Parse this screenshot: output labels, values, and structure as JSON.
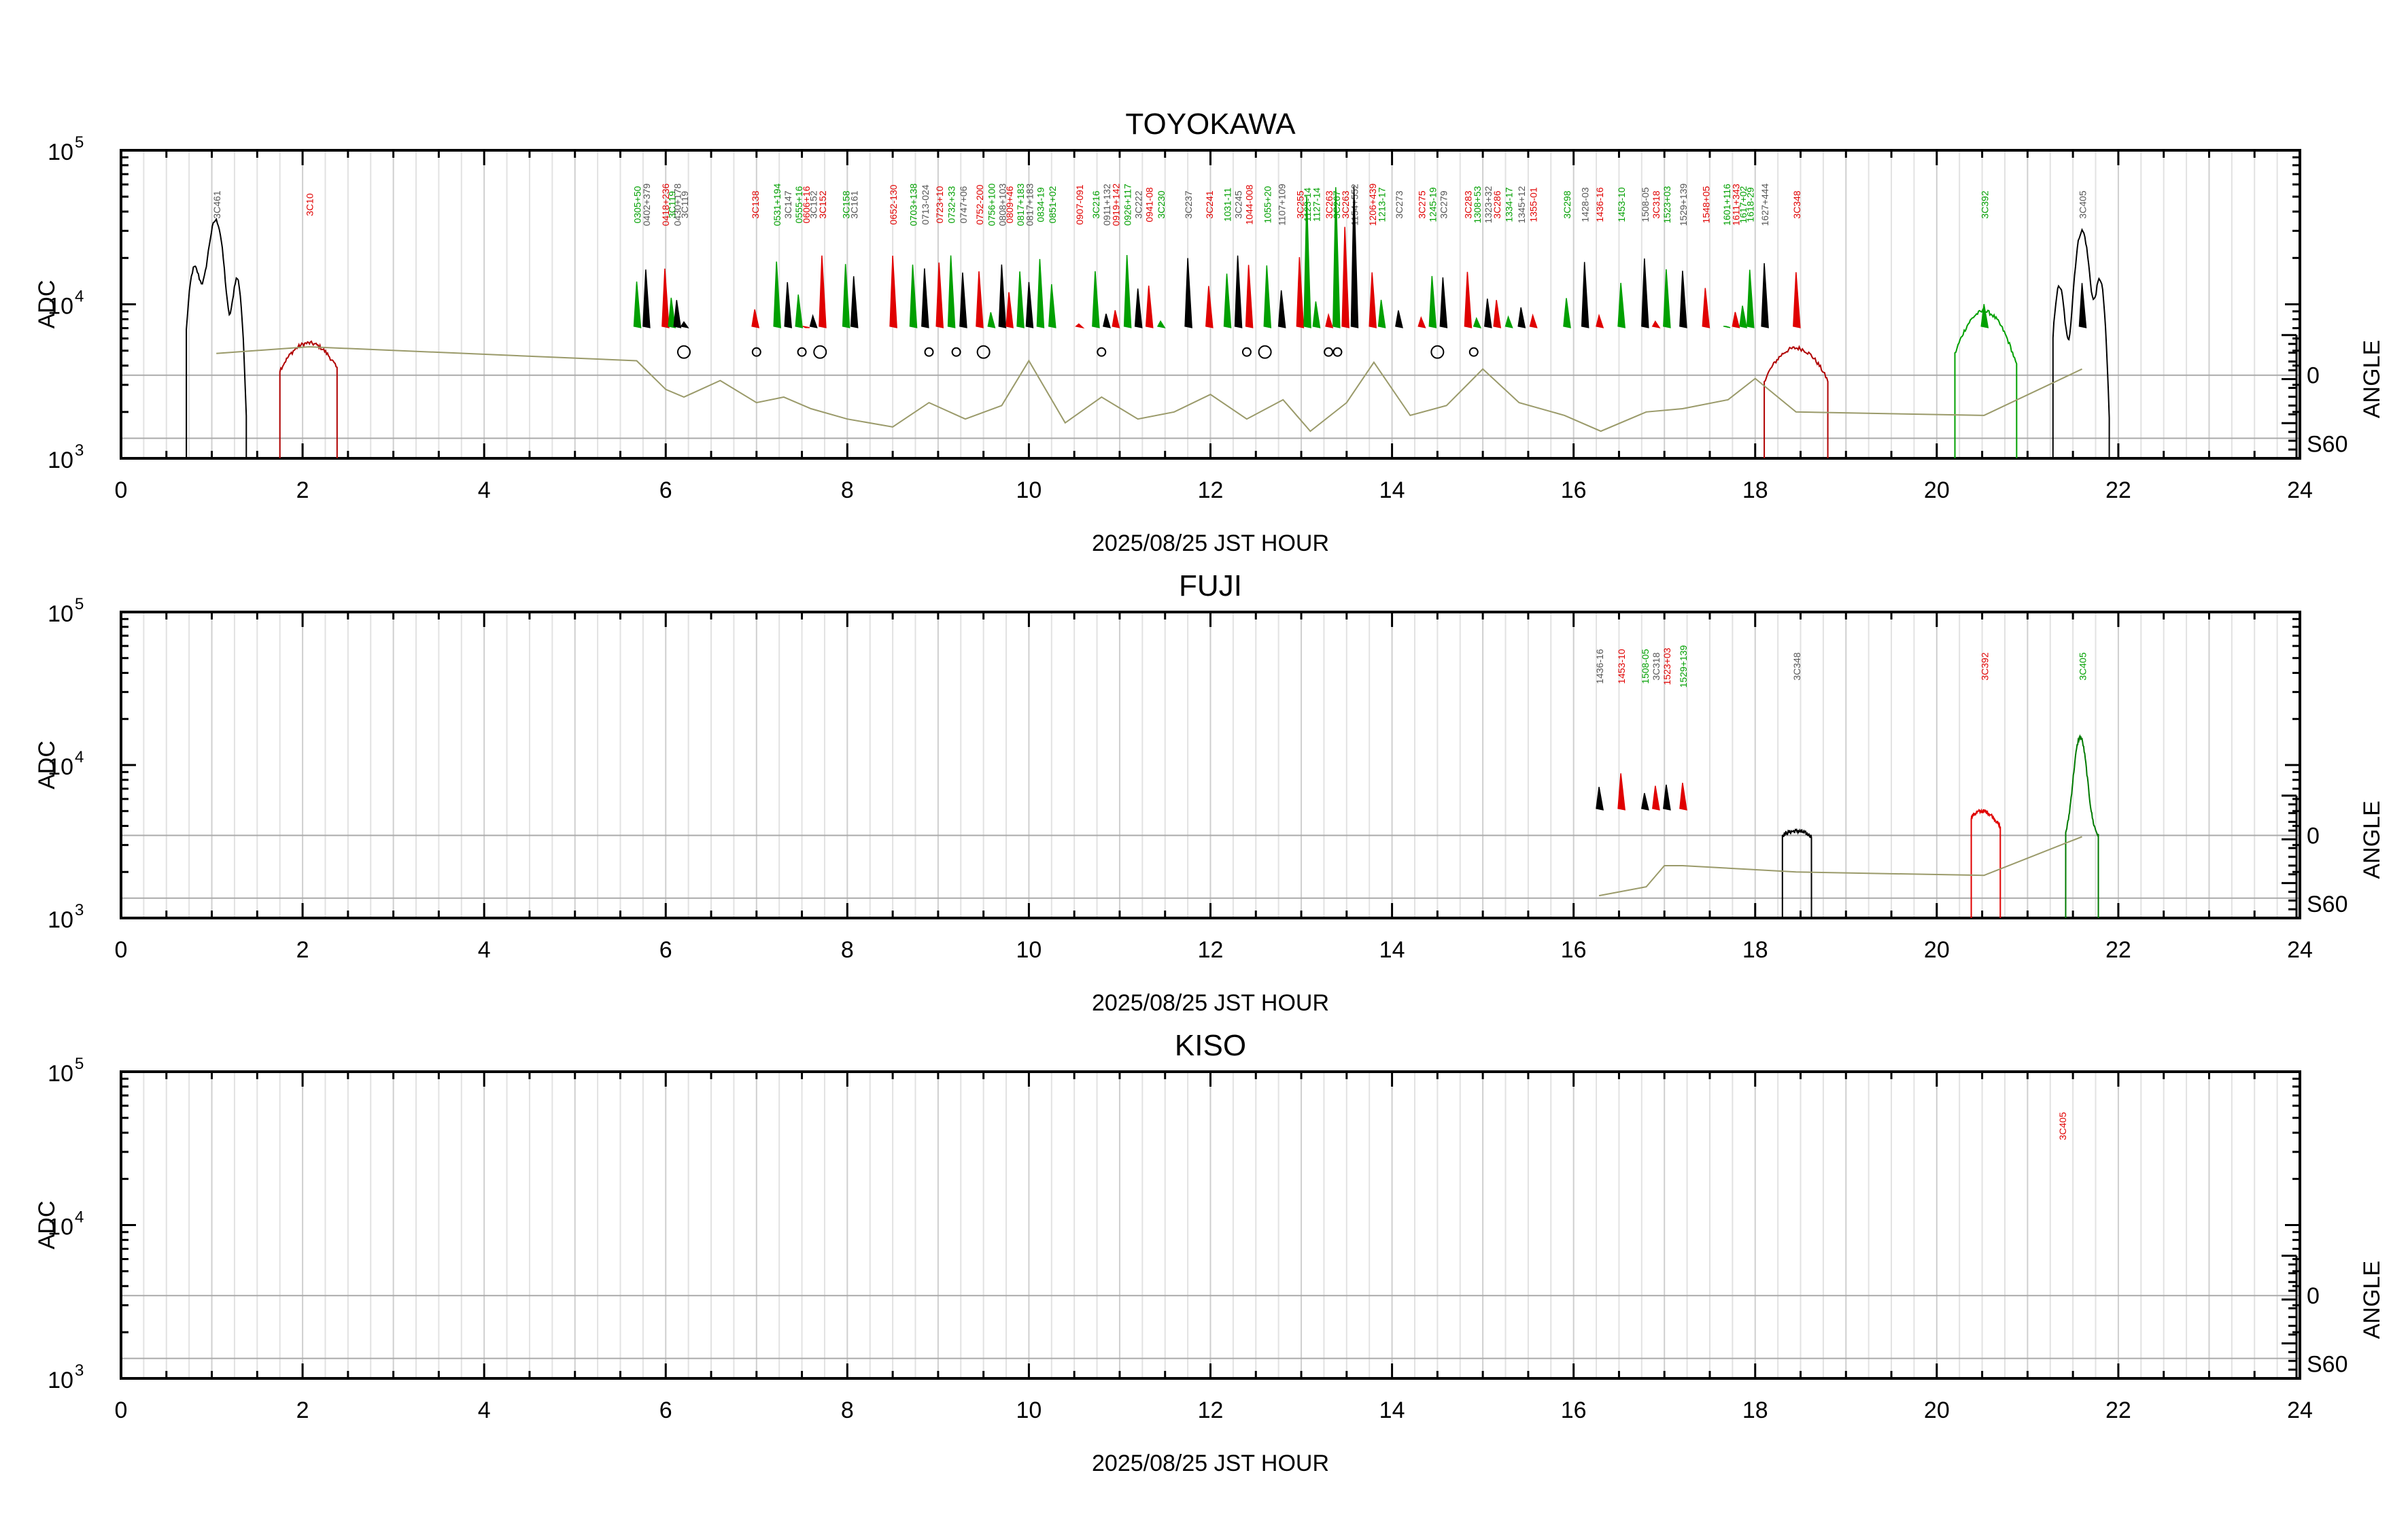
{
  "chart_data": [
    {
      "type": "line",
      "title": "TOYOKAWA",
      "xlabel": "2025/08/25 JST HOUR",
      "ylabel": "ADC",
      "y2label": "ANGLE",
      "xlim": [
        0,
        24
      ],
      "ylim": [
        1000,
        100000
      ],
      "yscale": "log",
      "xticks": [
        "0",
        "2",
        "4",
        "6",
        "8",
        "10",
        "12",
        "14",
        "16",
        "18",
        "20",
        "22",
        "24"
      ],
      "yticks": [
        {
          "base": "10",
          "exp": "5",
          "value": 100000
        },
        {
          "base": "10",
          "exp": "4",
          "value": 10000
        },
        {
          "base": "10",
          "exp": "3",
          "value": 1000
        }
      ],
      "angle_ticks": [
        {
          "label": "0"
        },
        {
          "label": "S60"
        }
      ],
      "colors": {
        "black": "#000000",
        "red": "#e00000",
        "green": "#00b000",
        "elevation": "#9a9a6a"
      },
      "sources": [
        {
          "t": 1.05,
          "name": "3C461",
          "color": "gray"
        },
        {
          "t": 2.07,
          "name": "3C10",
          "color": "red"
        },
        {
          "t": 5.68,
          "name": "0305+50",
          "color": "green"
        },
        {
          "t": 5.78,
          "name": "0402+379",
          "color": "gray"
        },
        {
          "t": 5.99,
          "name": "0418+236",
          "color": "red"
        },
        {
          "t": 6.06,
          "name": "3C119",
          "color": "green"
        },
        {
          "t": 6.12,
          "name": "0430+178",
          "color": "gray"
        },
        {
          "t": 6.2,
          "name": "3C119",
          "color": "gray"
        },
        {
          "t": 6.98,
          "name": "3C138",
          "color": "red"
        },
        {
          "t": 7.22,
          "name": "0531+194",
          "color": "green"
        },
        {
          "t": 7.34,
          "name": "3C147",
          "color": "gray"
        },
        {
          "t": 7.46,
          "name": "0555+16",
          "color": "green"
        },
        {
          "t": 7.54,
          "name": "0606+16",
          "color": "red"
        },
        {
          "t": 7.62,
          "name": "3C152",
          "color": "gray"
        },
        {
          "t": 7.72,
          "name": "3C152",
          "color": "red"
        },
        {
          "t": 7.98,
          "name": "3C158",
          "color": "green"
        },
        {
          "t": 8.07,
          "name": "3C161",
          "color": "gray"
        },
        {
          "t": 8.5,
          "name": "0652-130",
          "color": "red"
        },
        {
          "t": 8.72,
          "name": "0703+138",
          "color": "green"
        },
        {
          "t": 8.85,
          "name": "0713-024",
          "color": "gray"
        },
        {
          "t": 9.01,
          "name": "0723+10",
          "color": "red"
        },
        {
          "t": 9.14,
          "name": "0732+33",
          "color": "green"
        },
        {
          "t": 9.27,
          "name": "0747+06",
          "color": "gray"
        },
        {
          "t": 9.45,
          "name": "0752-200",
          "color": "red"
        },
        {
          "t": 9.58,
          "name": "0756+100",
          "color": "green"
        },
        {
          "t": 9.7,
          "name": "0808+103",
          "color": "gray"
        },
        {
          "t": 9.78,
          "name": "0809+46",
          "color": "red"
        },
        {
          "t": 9.9,
          "name": "0817+183",
          "color": "green"
        },
        {
          "t": 10.0,
          "name": "0817+183",
          "color": "gray"
        },
        {
          "t": 10.12,
          "name": "0834-19",
          "color": "green"
        },
        {
          "t": 10.25,
          "name": "0851+02",
          "color": "green"
        },
        {
          "t": 10.55,
          "name": "0907-091",
          "color": "red"
        },
        {
          "t": 10.73,
          "name": "3C216",
          "color": "green"
        },
        {
          "t": 10.85,
          "name": "0911+132",
          "color": "gray"
        },
        {
          "t": 10.95,
          "name": "0919+142",
          "color": "red"
        },
        {
          "t": 11.08,
          "name": "0926+117",
          "color": "green"
        },
        {
          "t": 11.2,
          "name": "3C222",
          "color": "gray"
        },
        {
          "t": 11.32,
          "name": "0941-08",
          "color": "red"
        },
        {
          "t": 11.45,
          "name": "3C230",
          "color": "green"
        },
        {
          "t": 11.75,
          "name": "3C237",
          "color": "gray"
        },
        {
          "t": 11.98,
          "name": "3C241",
          "color": "red"
        },
        {
          "t": 12.18,
          "name": "1031-11",
          "color": "green"
        },
        {
          "t": 12.3,
          "name": "3C245",
          "color": "gray"
        },
        {
          "t": 12.42,
          "name": "1044-008",
          "color": "red"
        },
        {
          "t": 12.62,
          "name": "1055+20",
          "color": "green"
        },
        {
          "t": 12.78,
          "name": "1107+109",
          "color": "gray"
        },
        {
          "t": 12.98,
          "name": "3C255",
          "color": "red"
        },
        {
          "t": 13.06,
          "name": "1123-14",
          "color": "green"
        },
        {
          "t": 13.16,
          "name": "1127-14",
          "color": "green"
        },
        {
          "t": 13.3,
          "name": "3C263",
          "color": "red"
        },
        {
          "t": 13.38,
          "name": "3C267",
          "color": "green"
        },
        {
          "t": 13.48,
          "name": "3C263",
          "color": "red"
        },
        {
          "t": 13.58,
          "name": "1154+552",
          "color": "gray"
        },
        {
          "t": 13.78,
          "name": "1206+439",
          "color": "red"
        },
        {
          "t": 13.88,
          "name": "1213-17",
          "color": "green"
        },
        {
          "t": 14.07,
          "name": "3C273",
          "color": "gray"
        },
        {
          "t": 14.32,
          "name": "3C275",
          "color": "red"
        },
        {
          "t": 14.44,
          "name": "1245-19",
          "color": "green"
        },
        {
          "t": 14.56,
          "name": "3C279",
          "color": "gray"
        },
        {
          "t": 14.83,
          "name": "3C283",
          "color": "red"
        },
        {
          "t": 14.93,
          "name": "1308+53",
          "color": "green"
        },
        {
          "t": 15.05,
          "name": "1323+32",
          "color": "gray"
        },
        {
          "t": 15.15,
          "name": "3C286",
          "color": "red"
        },
        {
          "t": 15.28,
          "name": "1334-17",
          "color": "green"
        },
        {
          "t": 15.42,
          "name": "1345+12",
          "color": "gray"
        },
        {
          "t": 15.55,
          "name": "1355-01",
          "color": "red"
        },
        {
          "t": 15.92,
          "name": "3C298",
          "color": "green"
        },
        {
          "t": 16.12,
          "name": "1428-03",
          "color": "gray"
        },
        {
          "t": 16.28,
          "name": "1436-16",
          "color": "red"
        },
        {
          "t": 16.52,
          "name": "1453-10",
          "color": "green"
        },
        {
          "t": 16.78,
          "name": "1508-05",
          "color": "gray"
        },
        {
          "t": 16.9,
          "name": "3C318",
          "color": "red"
        },
        {
          "t": 17.02,
          "name": "1523+03",
          "color": "green"
        },
        {
          "t": 17.2,
          "name": "1529+139",
          "color": "gray"
        },
        {
          "t": 17.45,
          "name": "1548+05",
          "color": "red"
        },
        {
          "t": 17.68,
          "name": "1601+116",
          "color": "green"
        },
        {
          "t": 17.78,
          "name": "1611+343",
          "color": "red"
        },
        {
          "t": 17.86,
          "name": "1617+02",
          "color": "green"
        },
        {
          "t": 17.94,
          "name": "1618-29",
          "color": "green"
        },
        {
          "t": 18.1,
          "name": "1627+444",
          "color": "gray"
        },
        {
          "t": 18.45,
          "name": "3C348",
          "color": "red"
        },
        {
          "t": 20.52,
          "name": "3C392",
          "color": "green"
        },
        {
          "t": 21.6,
          "name": "3C405",
          "color": "gray"
        }
      ]
    },
    {
      "type": "line",
      "title": "FUJI",
      "xlabel": "2025/08/25 JST HOUR",
      "ylabel": "ADC",
      "y2label": "ANGLE",
      "xlim": [
        0,
        24
      ],
      "ylim": [
        1000,
        100000
      ],
      "yscale": "log",
      "xticks": [
        "0",
        "2",
        "4",
        "6",
        "8",
        "10",
        "12",
        "14",
        "16",
        "18",
        "20",
        "22",
        "24"
      ],
      "yticks": [
        {
          "base": "10",
          "exp": "5",
          "value": 100000
        },
        {
          "base": "10",
          "exp": "4",
          "value": 10000
        },
        {
          "base": "10",
          "exp": "3",
          "value": 1000
        }
      ],
      "angle_ticks": [
        {
          "label": "0"
        },
        {
          "label": "S60"
        }
      ],
      "sources": [
        {
          "t": 16.28,
          "name": "1436-16",
          "color": "gray"
        },
        {
          "t": 16.52,
          "name": "1453-10",
          "color": "red"
        },
        {
          "t": 16.78,
          "name": "1508-05",
          "color": "green"
        },
        {
          "t": 16.9,
          "name": "3C318",
          "color": "gray"
        },
        {
          "t": 17.02,
          "name": "1523+03",
          "color": "red"
        },
        {
          "t": 17.2,
          "name": "1529+139",
          "color": "green"
        },
        {
          "t": 18.45,
          "name": "3C348",
          "color": "gray"
        },
        {
          "t": 20.52,
          "name": "3C392",
          "color": "red"
        },
        {
          "t": 21.6,
          "name": "3C405",
          "color": "green"
        }
      ]
    },
    {
      "type": "line",
      "title": "KISO",
      "xlabel": "2025/08/25 JST HOUR",
      "ylabel": "ADC",
      "y2label": "ANGLE",
      "xlim": [
        0,
        24
      ],
      "ylim": [
        1000,
        100000
      ],
      "yscale": "log",
      "xticks": [
        "0",
        "2",
        "4",
        "6",
        "8",
        "10",
        "12",
        "14",
        "16",
        "18",
        "20",
        "22",
        "24"
      ],
      "yticks": [
        {
          "base": "10",
          "exp": "5",
          "value": 100000
        },
        {
          "base": "10",
          "exp": "4",
          "value": 10000
        },
        {
          "base": "10",
          "exp": "3",
          "value": 1000
        }
      ],
      "angle_ticks": [
        {
          "label": "0"
        },
        {
          "label": "S60"
        }
      ],
      "sources": [
        {
          "t": 21.38,
          "name": "3C405",
          "color": "red"
        }
      ]
    }
  ]
}
